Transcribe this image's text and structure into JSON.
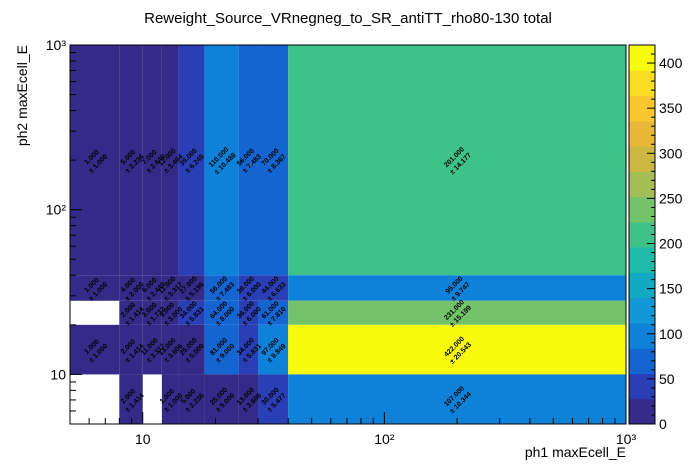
{
  "chart_data": {
    "type": "heatmap",
    "title": "Reweight_Source_VRnegneg_to_SR_antiTT_rho80-130 total",
    "xlabel": "ph1 maxEcell_E",
    "ylabel": "ph2 maxEcell_E",
    "x_scale": "log",
    "y_scale": "log",
    "xlim": [
      5,
      1000
    ],
    "ylim": [
      5,
      1000
    ],
    "x_edges": [
      5,
      8,
      10,
      12,
      14,
      18,
      25,
      30,
      40,
      1000
    ],
    "y_edges": [
      5,
      10,
      20,
      28,
      40,
      1000
    ],
    "x_tick_labels": [
      {
        "value": 10,
        "label": "10"
      },
      {
        "value": 100,
        "label": "10²"
      },
      {
        "value": 1000,
        "label": "10³"
      }
    ],
    "y_tick_labels": [
      {
        "value": 10,
        "label": "10"
      },
      {
        "value": 100,
        "label": "10²"
      },
      {
        "value": 1000,
        "label": "10³"
      }
    ],
    "zlim": [
      0,
      420
    ],
    "colorbar_ticks": [
      0,
      50,
      100,
      150,
      200,
      250,
      300,
      350,
      400
    ],
    "cells": [
      {
        "x": 0,
        "y": 4,
        "value": 1.0,
        "error": 1.0
      },
      {
        "x": 1,
        "y": 4,
        "value": 5.0,
        "error": 2.236
      },
      {
        "x": 2,
        "y": 4,
        "value": 7.0,
        "error": 2.646
      },
      {
        "x": 3,
        "y": 4,
        "value": 12.0,
        "error": 3.464
      },
      {
        "x": 4,
        "y": 4,
        "value": 39.0,
        "error": 6.245
      },
      {
        "x": 5,
        "y": 4,
        "value": 110.0,
        "error": 10.488
      },
      {
        "x": 6,
        "y": 4,
        "value": 56.0,
        "error": 7.483
      },
      {
        "x": 7,
        "y": 4,
        "value": 70.0,
        "error": 8.367
      },
      {
        "x": 8,
        "y": 4,
        "value": 201.0,
        "error": 14.177
      },
      {
        "x": 0,
        "y": 3,
        "value": 1.0,
        "error": 1.0
      },
      {
        "x": 1,
        "y": 3,
        "value": 4.0,
        "error": 2.0
      },
      {
        "x": 2,
        "y": 3,
        "value": 6.0,
        "error": 2.449
      },
      {
        "x": 3,
        "y": 3,
        "value": 11.0,
        "error": 3.317
      },
      {
        "x": 4,
        "y": 3,
        "value": 27.0,
        "error": 5.196
      },
      {
        "x": 5,
        "y": 3,
        "value": 56.0,
        "error": 7.483
      },
      {
        "x": 6,
        "y": 3,
        "value": 36.0,
        "error": 6.0
      },
      {
        "x": 7,
        "y": 3,
        "value": 44.0,
        "error": 6.633
      },
      {
        "x": 8,
        "y": 3,
        "value": 95.0,
        "error": 9.747
      },
      {
        "x": 1,
        "y": 2,
        "value": 2.0,
        "error": 1.414
      },
      {
        "x": 2,
        "y": 2,
        "value": 3.0,
        "error": 1.732
      },
      {
        "x": 3,
        "y": 2,
        "value": 9.0,
        "error": 3.0
      },
      {
        "x": 4,
        "y": 2,
        "value": 34.0,
        "error": 5.831
      },
      {
        "x": 5,
        "y": 2,
        "value": 64.0,
        "error": 8.0
      },
      {
        "x": 6,
        "y": 2,
        "value": 36.0,
        "error": 6.0
      },
      {
        "x": 7,
        "y": 2,
        "value": 61.0,
        "error": 7.81
      },
      {
        "x": 8,
        "y": 2,
        "value": 231.0,
        "error": 15.199
      },
      {
        "x": 0,
        "y": 1,
        "value": 1.0,
        "error": 1.0
      },
      {
        "x": 1,
        "y": 1,
        "value": 2.0,
        "error": 1.414
      },
      {
        "x": 2,
        "y": 1,
        "value": 11.0,
        "error": 3.317
      },
      {
        "x": 3,
        "y": 1,
        "value": 13.0,
        "error": 3.606
      },
      {
        "x": 4,
        "y": 1,
        "value": 25.0,
        "error": 5.0
      },
      {
        "x": 5,
        "y": 1,
        "value": 81.0,
        "error": 9.0
      },
      {
        "x": 6,
        "y": 1,
        "value": 34.0,
        "error": 5.831
      },
      {
        "x": 7,
        "y": 1,
        "value": 97.0,
        "error": 9.849
      },
      {
        "x": 8,
        "y": 1,
        "value": 422.0,
        "error": 20.543
      },
      {
        "x": 1,
        "y": 0,
        "value": 2.0,
        "error": 1.414
      },
      {
        "x": 3,
        "y": 0,
        "value": 1.0,
        "error": 1.0
      },
      {
        "x": 4,
        "y": 0,
        "value": 5.0,
        "error": 2.236
      },
      {
        "x": 5,
        "y": 0,
        "value": 25.0,
        "error": 5.0
      },
      {
        "x": 6,
        "y": 0,
        "value": 13.0,
        "error": 3.606
      },
      {
        "x": 7,
        "y": 0,
        "value": 30.0,
        "error": 5.477
      },
      {
        "x": 8,
        "y": 0,
        "value": 107.0,
        "error": 10.344
      }
    ],
    "palette": [
      "#352a87",
      "#2a3fb5",
      "#1565d1",
      "#0e82d8",
      "#1298d6",
      "#11aac2",
      "#1ebaaa",
      "#3fc28a",
      "#73c36a",
      "#a4be56",
      "#cbb842",
      "#e9b836",
      "#f8c82e",
      "#f9de24",
      "#f9fb0e"
    ],
    "grid": false,
    "legend": "none",
    "colorbar": "right"
  }
}
